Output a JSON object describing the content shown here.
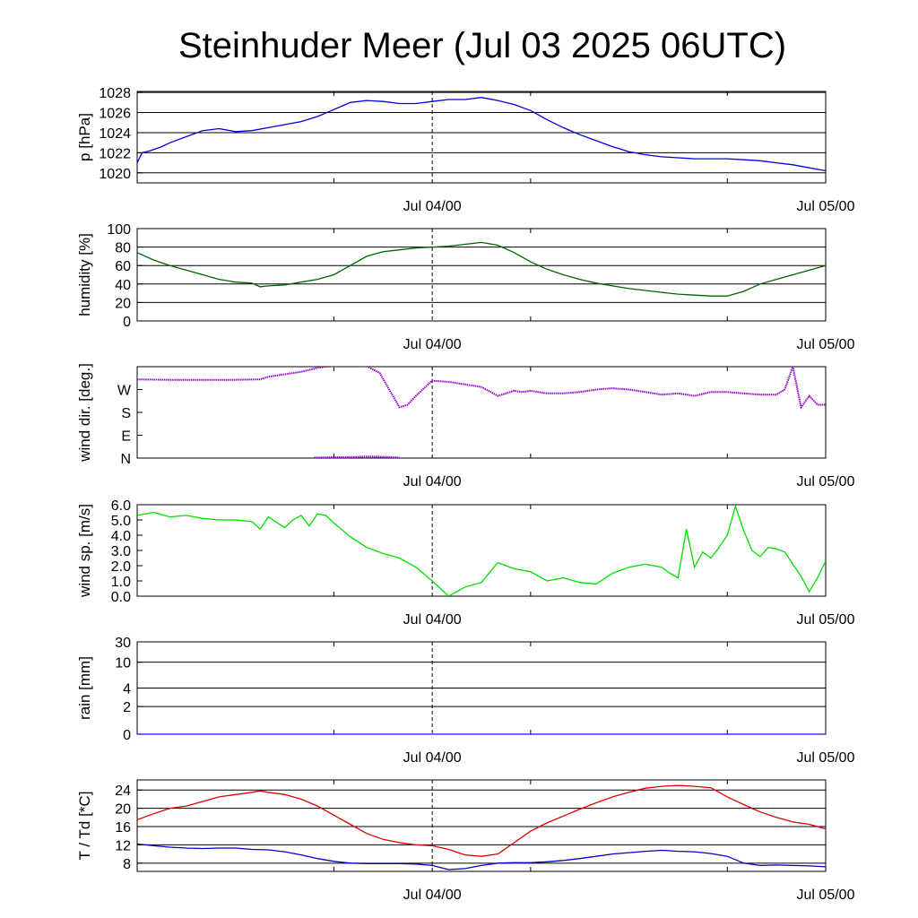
{
  "title": "Steinhuder Meer (Jul 03 2025 06UTC)",
  "colors": {
    "pressure": "#0000dd",
    "humidity": "#006400",
    "wind_dir": "#9400d3",
    "wind_speed": "#00dd00",
    "temperature": "#dd0000",
    "dewpoint": "#0000cc",
    "grid": "#000000"
  },
  "chart_data": [
    {
      "type": "line",
      "ylabel": "p [hPa]",
      "x_tick_labels": [
        "Jul 04/00",
        "Jul 05/00"
      ],
      "x_range_hours": [
        0,
        42
      ],
      "ylim": [
        1019,
        1028.1
      ],
      "yticks": [
        1020,
        1022,
        1024,
        1026,
        1028
      ],
      "ytick_labels": [
        "1020",
        "1022",
        "1024",
        "1026",
        "1028"
      ],
      "grid": "horizontal",
      "series": [
        {
          "color_key": "pressure",
          "x": [
            0,
            0.3,
            0.8,
            1.5,
            2,
            2.5,
            3,
            3.5,
            4,
            4.5,
            5,
            6,
            7,
            8,
            9,
            10,
            11,
            12,
            13,
            14,
            15,
            16,
            17,
            18,
            19,
            20,
            21,
            22,
            23,
            24,
            25,
            26,
            27,
            28,
            29,
            30,
            31,
            32,
            33,
            34,
            35,
            36,
            37,
            38,
            39,
            40,
            41,
            42
          ],
          "y": [
            1021.0,
            1022.0,
            1022.2,
            1022.6,
            1023.0,
            1023.3,
            1023.6,
            1023.9,
            1024.2,
            1024.3,
            1024.4,
            1024.1,
            1024.2,
            1024.5,
            1024.8,
            1025.1,
            1025.6,
            1026.3,
            1027.0,
            1027.2,
            1027.1,
            1026.9,
            1026.9,
            1027.1,
            1027.3,
            1027.3,
            1027.5,
            1027.2,
            1026.8,
            1026.2,
            1025.3,
            1024.5,
            1023.8,
            1023.2,
            1022.6,
            1022.1,
            1021.8,
            1021.6,
            1021.5,
            1021.4,
            1021.4,
            1021.4,
            1021.3,
            1021.2,
            1021.0,
            1020.8,
            1020.5,
            1020.2
          ]
        }
      ]
    },
    {
      "type": "line",
      "ylabel": "humidity [%]",
      "x_tick_labels": [
        "Jul 04/00",
        "Jul 05/00"
      ],
      "x_range_hours": [
        0,
        42
      ],
      "ylim": [
        0,
        100
      ],
      "yticks": [
        0,
        20,
        40,
        60,
        80,
        100
      ],
      "ytick_labels": [
        "0",
        "20",
        "40",
        "60",
        "80",
        "100"
      ],
      "grid": "horizontal",
      "series": [
        {
          "color_key": "humidity",
          "x": [
            0,
            1,
            2,
            3,
            4,
            5,
            6,
            7,
            7.5,
            8,
            9,
            10,
            11,
            12,
            13,
            14,
            15,
            16,
            17,
            18,
            19,
            20,
            21,
            22,
            23,
            24,
            25,
            26,
            27,
            28,
            29,
            30,
            31,
            32,
            33,
            34,
            35,
            36,
            37,
            38,
            39,
            40,
            41,
            42
          ],
          "y": [
            74,
            66,
            60,
            55,
            50,
            45,
            42,
            41,
            37,
            38,
            39,
            42,
            45,
            50,
            60,
            70,
            75,
            77,
            79,
            80,
            81,
            83,
            85,
            82,
            74,
            64,
            56,
            50,
            45,
            41,
            38,
            35,
            33,
            31,
            29,
            28,
            27,
            27,
            32,
            40,
            45,
            50,
            55,
            60
          ]
        }
      ]
    },
    {
      "type": "scatter",
      "ylabel": "wind dir. [deg.]",
      "x_tick_labels": [
        "Jul 04/00",
        "Jul 05/00"
      ],
      "x_range_hours": [
        0,
        42
      ],
      "ylim": [
        0,
        360
      ],
      "yticks": [
        0,
        90,
        180,
        270
      ],
      "ytick_labels": [
        "N",
        "E",
        "S",
        "W"
      ],
      "grid": "none",
      "series": [
        {
          "color_key": "wind_dir",
          "x": [
            0,
            2,
            4,
            6,
            7.5,
            8,
            9,
            10,
            11,
            11.5,
            12,
            13,
            14,
            14.8,
            16,
            16.5,
            17,
            18,
            19,
            20,
            21,
            22,
            23,
            23.5,
            24,
            25,
            26,
            27,
            28,
            29,
            30,
            31,
            32,
            33,
            34,
            35,
            36,
            37,
            38,
            39,
            39.5,
            40,
            40.5,
            41,
            41.5,
            42
          ],
          "y": [
            310,
            308,
            308,
            308,
            310,
            320,
            330,
            340,
            355,
            360,
            362,
            365,
            362,
            335,
            200,
            210,
            245,
            305,
            300,
            290,
            280,
            245,
            265,
            260,
            265,
            255,
            255,
            260,
            270,
            275,
            270,
            260,
            250,
            255,
            245,
            260,
            260,
            255,
            250,
            250,
            270,
            360,
            200,
            245,
            210,
            210
          ]
        },
        {
          "color_key": "wind_dir",
          "x": [
            10.8,
            12,
            13,
            14,
            15,
            16
          ],
          "y": [
            2,
            3,
            4,
            6,
            5,
            2
          ]
        }
      ]
    },
    {
      "type": "line",
      "ylabel": "wind sp. [m/s]",
      "x_tick_labels": [
        "Jul 04/00",
        "Jul 05/00"
      ],
      "x_range_hours": [
        0,
        42
      ],
      "ylim": [
        0,
        6.0
      ],
      "yticks": [
        0,
        1,
        2,
        3,
        4,
        5,
        6
      ],
      "ytick_labels": [
        "0.0",
        "1.0",
        "2.0",
        "3.0",
        "4.0",
        "5.0",
        "6.0"
      ],
      "grid": "none",
      "series": [
        {
          "color_key": "wind_speed",
          "x": [
            0,
            0.5,
            1,
            2,
            3,
            4,
            5,
            6,
            7,
            7.5,
            8,
            9,
            9.5,
            10,
            10.5,
            11,
            11.5,
            12,
            13,
            14,
            15,
            16,
            17,
            18,
            19,
            20,
            21,
            22,
            23,
            24,
            25,
            26,
            27,
            28,
            29,
            30,
            31,
            32,
            32.5,
            33,
            33.5,
            34,
            34.5,
            35,
            35.5,
            36,
            36.5,
            37,
            37.5,
            38,
            38.5,
            39,
            39.5,
            40,
            40.5,
            41,
            41.5,
            42
          ],
          "y": [
            5.3,
            5.4,
            5.5,
            5.2,
            5.3,
            5.1,
            5.0,
            5.0,
            4.9,
            4.4,
            5.2,
            4.5,
            5.0,
            5.3,
            4.6,
            5.4,
            5.3,
            4.8,
            3.9,
            3.2,
            2.8,
            2.5,
            1.9,
            1.0,
            0.0,
            0.6,
            0.9,
            2.2,
            1.8,
            1.6,
            1.0,
            1.2,
            0.9,
            0.8,
            1.5,
            1.9,
            2.1,
            1.9,
            1.5,
            1.2,
            4.4,
            1.9,
            2.9,
            2.5,
            3.2,
            4.0,
            5.9,
            4.3,
            3.0,
            2.6,
            3.2,
            3.1,
            2.9,
            2.1,
            1.3,
            0.3,
            1.2,
            2.3
          ]
        }
      ]
    },
    {
      "type": "line",
      "ylabel": "rain [mm]",
      "x_tick_labels": [
        "Jul 04/00",
        "Jul 05/00"
      ],
      "x_range_hours": [
        0,
        42
      ],
      "yticks": [
        0,
        2,
        4,
        10,
        30
      ],
      "ytick_labels": [
        "0",
        "2",
        "4",
        "10",
        "30"
      ],
      "grid": "horizontal",
      "series": [
        {
          "color_key": "pressure",
          "x": [
            0,
            42
          ],
          "y": [
            0,
            0
          ]
        }
      ]
    },
    {
      "type": "line",
      "ylabel": "T / Td [*C]",
      "x_tick_labels": [
        "Jul 04/00",
        "Jul 05/00"
      ],
      "x_range_hours": [
        0,
        42
      ],
      "ylim": [
        6.2,
        26.2
      ],
      "yticks": [
        8,
        12,
        16,
        20,
        24
      ],
      "ytick_labels": [
        "8",
        "12",
        "16",
        "20",
        "24"
      ],
      "grid": "horizontal",
      "series": [
        {
          "color_key": "temperature",
          "x": [
            0,
            1,
            2,
            3,
            4,
            5,
            6,
            7,
            7.5,
            8,
            9,
            10,
            11,
            12,
            13,
            14,
            15,
            16,
            17,
            18,
            19,
            20,
            21,
            22,
            23,
            24,
            25,
            26,
            27,
            28,
            29,
            30,
            31,
            32,
            33,
            34,
            35,
            36,
            37,
            38,
            39,
            40,
            41,
            42
          ],
          "y": [
            17.5,
            18.8,
            20.0,
            20.5,
            21.5,
            22.5,
            23.0,
            23.5,
            23.8,
            23.5,
            23.0,
            22.0,
            20.5,
            18.5,
            16.5,
            14.5,
            13.2,
            12.5,
            12.0,
            11.8,
            11.0,
            9.8,
            9.5,
            10.0,
            12.5,
            15.0,
            16.8,
            18.3,
            19.8,
            21.2,
            22.5,
            23.5,
            24.4,
            24.8,
            25.0,
            24.8,
            24.5,
            22.5,
            20.8,
            19.2,
            18.0,
            17.0,
            16.5,
            15.5
          ]
        },
        {
          "color_key": "dewpoint",
          "x": [
            0,
            1,
            2,
            3,
            4,
            5,
            6,
            7,
            8,
            9,
            10,
            11,
            12,
            13,
            14,
            15,
            16,
            17,
            18,
            19,
            20,
            21,
            22,
            23,
            24,
            25,
            26,
            27,
            28,
            29,
            30,
            31,
            32,
            33,
            34,
            35,
            36,
            37,
            38,
            39,
            40,
            41,
            42
          ],
          "y": [
            12.2,
            11.8,
            11.5,
            11.3,
            11.2,
            11.3,
            11.3,
            11.0,
            10.9,
            10.5,
            9.8,
            9.0,
            8.4,
            8.0,
            7.9,
            7.9,
            7.9,
            7.8,
            7.5,
            6.6,
            6.8,
            7.5,
            8.0,
            8.1,
            8.1,
            8.3,
            8.6,
            9.0,
            9.5,
            10.0,
            10.3,
            10.6,
            10.8,
            10.6,
            10.5,
            10.1,
            9.5,
            8.0,
            7.5,
            7.6,
            7.5,
            7.4,
            7.2
          ]
        }
      ]
    }
  ]
}
